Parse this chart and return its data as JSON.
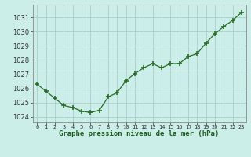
{
  "x": [
    0,
    1,
    2,
    3,
    4,
    5,
    6,
    7,
    8,
    9,
    10,
    11,
    12,
    13,
    14,
    15,
    16,
    17,
    18,
    19,
    20,
    21,
    22,
    23
  ],
  "y": [
    1026.3,
    1025.8,
    1025.3,
    1024.8,
    1024.65,
    1024.4,
    1024.3,
    1024.45,
    1025.4,
    1025.7,
    1026.55,
    1027.05,
    1027.45,
    1027.75,
    1027.45,
    1027.75,
    1027.75,
    1028.25,
    1028.45,
    1029.2,
    1029.85,
    1030.35,
    1030.8,
    1031.35
  ],
  "line_color": "#2a6b2a",
  "marker_color": "#2a6b2a",
  "bg_color": "#cceee8",
  "grid_color": "#aacccc",
  "xlabel": "Graphe pression niveau de la mer (hPa)",
  "xlabel_color": "#1a5c1a",
  "ylabel_ticks": [
    1024,
    1025,
    1026,
    1027,
    1028,
    1029,
    1030,
    1031
  ],
  "ylim": [
    1023.6,
    1031.9
  ],
  "xlim": [
    -0.5,
    23.5
  ],
  "xtick_labels": [
    "0",
    "1",
    "2",
    "3",
    "4",
    "5",
    "6",
    "7",
    "8",
    "9",
    "1011",
    "1213",
    "1415",
    "1617",
    "1819",
    "2021",
    "2223"
  ]
}
